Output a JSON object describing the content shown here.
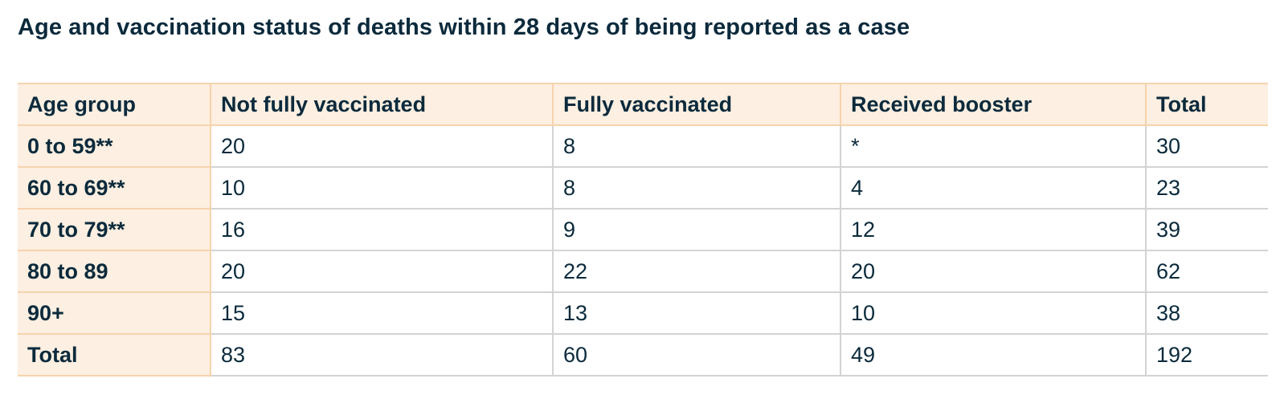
{
  "title": "Age and vaccination status of deaths within 28 days of being reported as a case",
  "table": {
    "headers": [
      "Age group",
      "Not fully vaccinated",
      "Fully vaccinated",
      "Received booster",
      "Total"
    ],
    "rows": [
      [
        "0 to 59**",
        "20",
        "8",
        "*",
        "30"
      ],
      [
        "60 to 69**",
        "10",
        "8",
        "4",
        "23"
      ],
      [
        "70 to 79**",
        "16",
        "9",
        "12",
        "39"
      ],
      [
        "80 to 89",
        "20",
        "22",
        "20",
        "62"
      ],
      [
        "90+",
        "15",
        "13",
        "10",
        "38"
      ],
      [
        "Total",
        "83",
        "60",
        "49",
        "192"
      ]
    ]
  },
  "colors": {
    "header_background": "#fdefe1",
    "header_border": "#f6d3ad",
    "cell_border": "#d3d3d3",
    "text": "#0b2a3c"
  }
}
